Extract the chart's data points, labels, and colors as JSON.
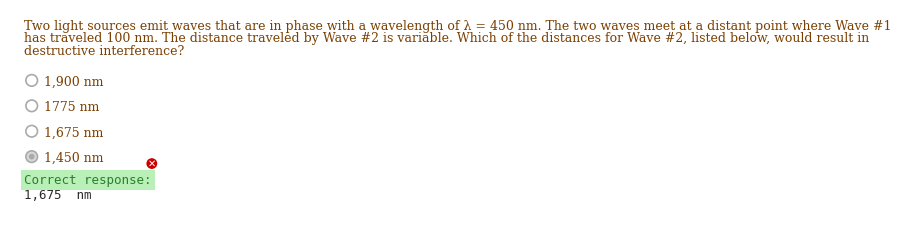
{
  "question_text_line1": "Two light sources emit waves that are in phase with a wavelength of λ = 450 nm. The two waves meet at a distant point where Wave #1",
  "question_text_line2": "has traveled 100 nm. The distance traveled by Wave #2 is variable. Which of the distances for Wave #2, listed below, would result in",
  "question_text_line3": "destructive interference?",
  "options": [
    "1,900 nm",
    "1775 nm",
    "1,675 nm",
    "1,450 nm"
  ],
  "selected_option_index": 3,
  "correct_option_index": 2,
  "correct_response_label": "Correct response:",
  "correct_response_value": "1,675  nm",
  "text_color": "#7B3F00",
  "background_color": "#ffffff",
  "correct_highlight_color": "#b8f0b8",
  "correct_text_color": "#2e7d2e",
  "answer_text_color": "#2a2a2a",
  "radio_outer_color": "#aaaaaa",
  "radio_fill_empty": "#ffffff",
  "radio_fill_selected": "#d8d8d8",
  "wrong_mark_bg": "#cc0000",
  "wrong_mark_fg": "#ffffff",
  "font_size_question": 9.0,
  "font_size_options": 9.0,
  "font_size_correct": 9.0
}
